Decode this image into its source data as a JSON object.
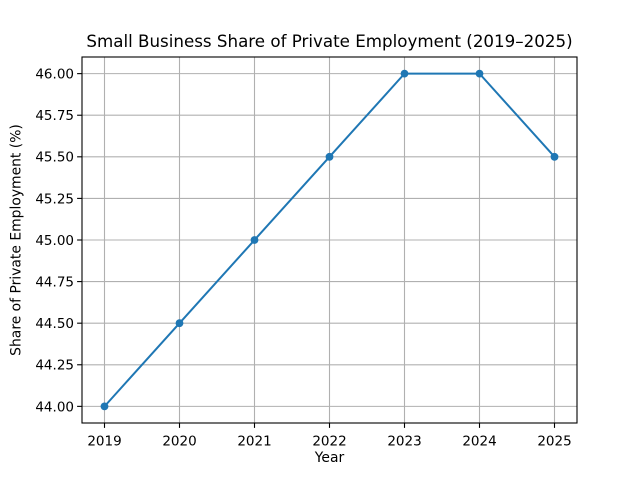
{
  "chart_data": {
    "type": "line",
    "title": "Small Business Share of Private Employment (2019–2025)",
    "xlabel": "Year",
    "ylabel": "Share of Private Employment (%)",
    "x": [
      2019,
      2020,
      2021,
      2022,
      2023,
      2024,
      2025
    ],
    "values": [
      44.0,
      44.5,
      45.0,
      45.5,
      46.0,
      46.0,
      45.5
    ],
    "xtick_labels": [
      "2019",
      "2020",
      "2021",
      "2022",
      "2023",
      "2024",
      "2025"
    ],
    "ytick_values": [
      44.0,
      44.25,
      44.5,
      44.75,
      45.0,
      45.25,
      45.5,
      45.75,
      46.0
    ],
    "ytick_labels": [
      "44.00",
      "44.25",
      "44.50",
      "44.75",
      "45.00",
      "45.25",
      "45.50",
      "45.75",
      "46.00"
    ],
    "xlim": [
      2018.7,
      2025.3
    ],
    "ylim": [
      43.9,
      46.1
    ],
    "grid": true,
    "legend_position": "none",
    "marker": "circle",
    "line_color": "#1f77b4",
    "grid_color": "#b0b0b0",
    "axis_color": "#000000",
    "background_color": "#ffffff"
  }
}
